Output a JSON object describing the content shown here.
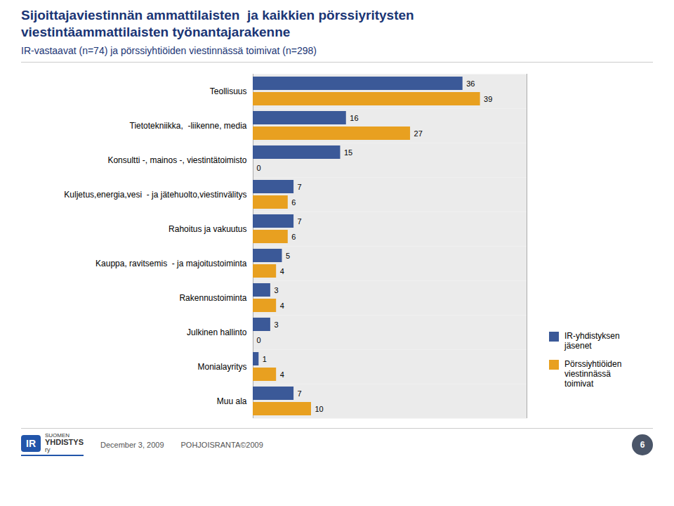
{
  "chart_data": {
    "type": "bar",
    "orientation": "horizontal",
    "title": "Sijoittajaviestinnän ammattilaisten  ja kaikkien pörssiyritysten\nviestintäammattilaisten työnantajarakenne",
    "subtitle": "IR-vastaavat (n=74) ja pörssiyhtiöiden viestinnässä toimivat (n=298)",
    "categories": [
      "Teollisuus",
      "Tietotekniikka,  -liikenne, media",
      "Konsultti -, mainos -, viestintätoimisto",
      "Kuljetus,energia,vesi  - ja jätehuolto,viestinvälitys",
      "Rahoitus ja vakuutus",
      "Kauppa, ravitsemis  - ja majoitustoiminta",
      "Rakennustoiminta",
      "Julkinen hallinto",
      "Monialayritys",
      "Muu ala"
    ],
    "series": [
      {
        "name": "IR-yhdistyksen\njäsenet",
        "color": "#3B5998",
        "values": [
          36,
          16,
          15,
          7,
          7,
          5,
          3,
          3,
          1,
          7
        ]
      },
      {
        "name": "Pörssiyhtiöiden\nviestinnässä\ntoimivat",
        "color": "#E8A020",
        "values": [
          39,
          27,
          0,
          6,
          6,
          4,
          4,
          0,
          4,
          10
        ]
      }
    ],
    "xlim": [
      0,
      47
    ],
    "tick_labels": "y",
    "grid": false,
    "legend": "right",
    "data_labels": true,
    "annotations": [
      "December 3, 2009",
      "POHJOISRANTA©2009",
      "6",
      "IR",
      "SUOMEN",
      "YHDISTYS",
      "ry"
    ]
  }
}
